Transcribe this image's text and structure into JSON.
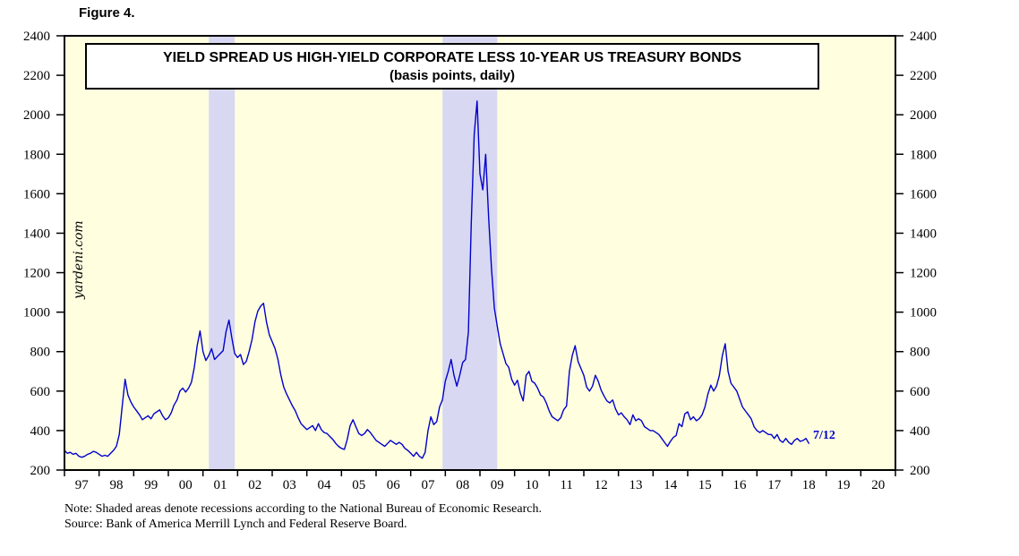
{
  "figure_label": "Figure 4.",
  "chart": {
    "title_line1": "YIELD SPREAD US HIGH-YIELD CORPORATE LESS 10-YEAR US TREASURY BONDS",
    "title_line2": "(basis points, daily)",
    "watermark": "yardeni.com",
    "end_label": "7/12"
  },
  "notes": {
    "line1": "Note: Shaded areas denote recessions according to the National Bureau of Economic Research.",
    "line2": "Source: Bank of America Merrill Lynch and Federal Reserve Board."
  },
  "colors": {
    "line": "#0000cc",
    "plot_bg": "#ffffe0",
    "recession_band": "#d8d8f2",
    "axis": "#000000",
    "end_label": "#0000cc"
  },
  "chart_data": {
    "type": "line",
    "title": "YIELD SPREAD US HIGH-YIELD CORPORATE LESS 10-YEAR US TREASURY BONDS (basis points, daily)",
    "xlabel": "",
    "ylabel": "basis points",
    "ylim": [
      200,
      2400
    ],
    "y_ticks": [
      200,
      400,
      600,
      800,
      1000,
      1200,
      1400,
      1600,
      1800,
      2000,
      2200,
      2400
    ],
    "x_range": [
      1997,
      2021
    ],
    "x_tick_labels": [
      "97",
      "98",
      "99",
      "00",
      "01",
      "02",
      "03",
      "04",
      "05",
      "06",
      "07",
      "08",
      "09",
      "10",
      "11",
      "12",
      "13",
      "14",
      "15",
      "16",
      "17",
      "18",
      "19",
      "20"
    ],
    "grid": false,
    "legend": false,
    "recessions": [
      {
        "start": 2001.17,
        "end": 2001.92
      },
      {
        "start": 2007.92,
        "end": 2009.5
      }
    ],
    "series": [
      {
        "name": "US high-yield corporate less 10-year Treasury spread",
        "start_year": 1997,
        "monthly_values": [
          300,
          285,
          290,
          280,
          285,
          270,
          265,
          270,
          280,
          285,
          295,
          290,
          280,
          270,
          275,
          270,
          285,
          300,
          320,
          380,
          520,
          660,
          580,
          545,
          520,
          500,
          480,
          455,
          465,
          475,
          460,
          485,
          495,
          505,
          475,
          455,
          465,
          490,
          530,
          555,
          600,
          615,
          595,
          615,
          645,
          720,
          830,
          905,
          800,
          755,
          780,
          815,
          760,
          775,
          790,
          805,
          900,
          960,
          870,
          790,
          770,
          785,
          735,
          750,
          800,
          860,
          950,
          1005,
          1030,
          1045,
          950,
          885,
          850,
          815,
          760,
          680,
          620,
          585,
          555,
          525,
          500,
          465,
          435,
          420,
          405,
          415,
          425,
          400,
          435,
          405,
          390,
          385,
          370,
          355,
          335,
          320,
          310,
          305,
          355,
          425,
          455,
          420,
          385,
          375,
          385,
          405,
          390,
          370,
          350,
          340,
          330,
          320,
          335,
          350,
          340,
          330,
          340,
          330,
          310,
          300,
          285,
          270,
          290,
          270,
          260,
          290,
          400,
          470,
          430,
          445,
          520,
          555,
          650,
          700,
          760,
          680,
          625,
          680,
          745,
          760,
          900,
          1450,
          1900,
          2070,
          1700,
          1620,
          1800,
          1480,
          1220,
          1020,
          930,
          840,
          790,
          740,
          720,
          660,
          630,
          655,
          590,
          550,
          680,
          700,
          650,
          640,
          615,
          580,
          570,
          540,
          500,
          470,
          460,
          450,
          465,
          505,
          525,
          700,
          780,
          830,
          750,
          715,
          680,
          620,
          600,
          625,
          680,
          650,
          605,
          575,
          550,
          540,
          555,
          510,
          480,
          490,
          470,
          455,
          430,
          480,
          450,
          460,
          450,
          420,
          410,
          400,
          400,
          390,
          380,
          360,
          340,
          320,
          345,
          365,
          375,
          435,
          420,
          485,
          495,
          455,
          470,
          450,
          460,
          480,
          520,
          585,
          630,
          600,
          625,
          680,
          780,
          840,
          700,
          640,
          620,
          600,
          560,
          520,
          500,
          480,
          460,
          420,
          400,
          390,
          400,
          390,
          380,
          380,
          360,
          380,
          350,
          340,
          360,
          340,
          330,
          350,
          360,
          345,
          350,
          360,
          335
        ]
      }
    ]
  }
}
